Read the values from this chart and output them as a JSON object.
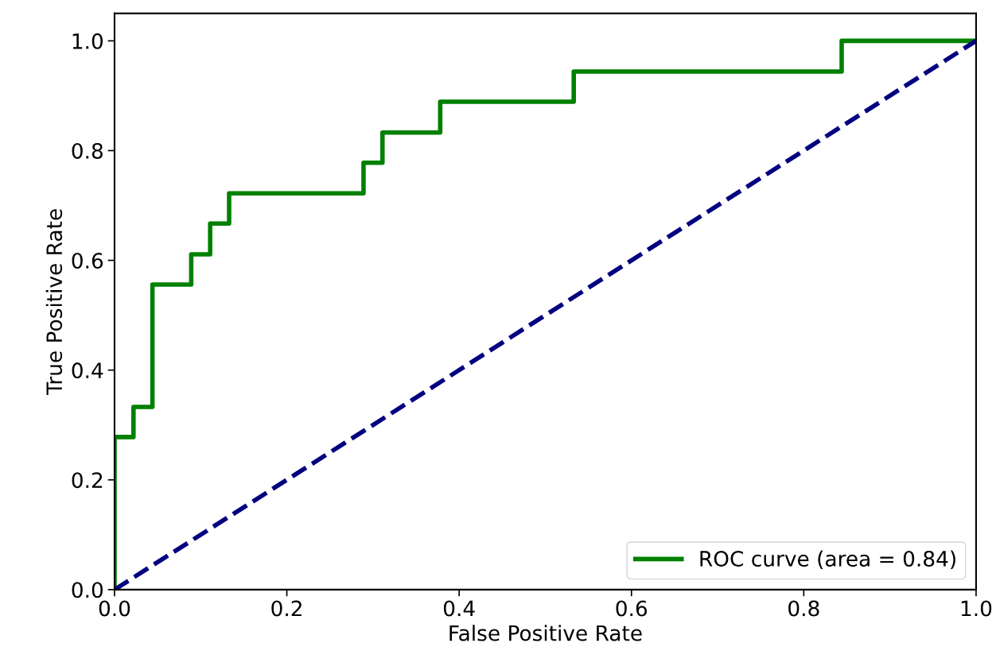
{
  "chart_data": {
    "type": "line",
    "xlabel": "False Positive Rate",
    "ylabel": "True Positive Rate",
    "xlim": [
      0.0,
      1.0
    ],
    "ylim": [
      0.0,
      1.05
    ],
    "xticks": [
      {
        "value": 0,
        "label": "0.0"
      },
      0.2,
      0.4,
      0.6,
      0.8,
      {
        "value": 1,
        "label": "1.0"
      }
    ],
    "yticks": [
      {
        "value": 0,
        "label": "0.0"
      },
      0.2,
      0.4,
      0.6,
      0.8,
      {
        "value": 1,
        "label": "1.0"
      }
    ],
    "grid": false,
    "legend": "lower right",
    "series": [
      {
        "name": "ROC curve (area = 0.84)",
        "color": "#008000",
        "line_style": "solid",
        "x": [
          0,
          0,
          0.022,
          0.022,
          0.044,
          0.044,
          0.089,
          0.089,
          0.111,
          0.111,
          0.133,
          0.133,
          0.289,
          0.289,
          0.311,
          0.311,
          0.378,
          0.378,
          0.533,
          0.533,
          0.844,
          0.844,
          1.0
        ],
        "values": [
          0,
          0.278,
          0.278,
          0.333,
          0.333,
          0.556,
          0.556,
          0.611,
          0.611,
          0.667,
          0.667,
          0.722,
          0.722,
          0.778,
          0.778,
          0.833,
          0.833,
          0.889,
          0.889,
          0.944,
          0.944,
          1.0,
          1.0
        ]
      },
      {
        "color": "#000080",
        "line_style": "dashed",
        "x": [
          0,
          1
        ],
        "values": [
          0,
          1
        ]
      }
    ]
  }
}
